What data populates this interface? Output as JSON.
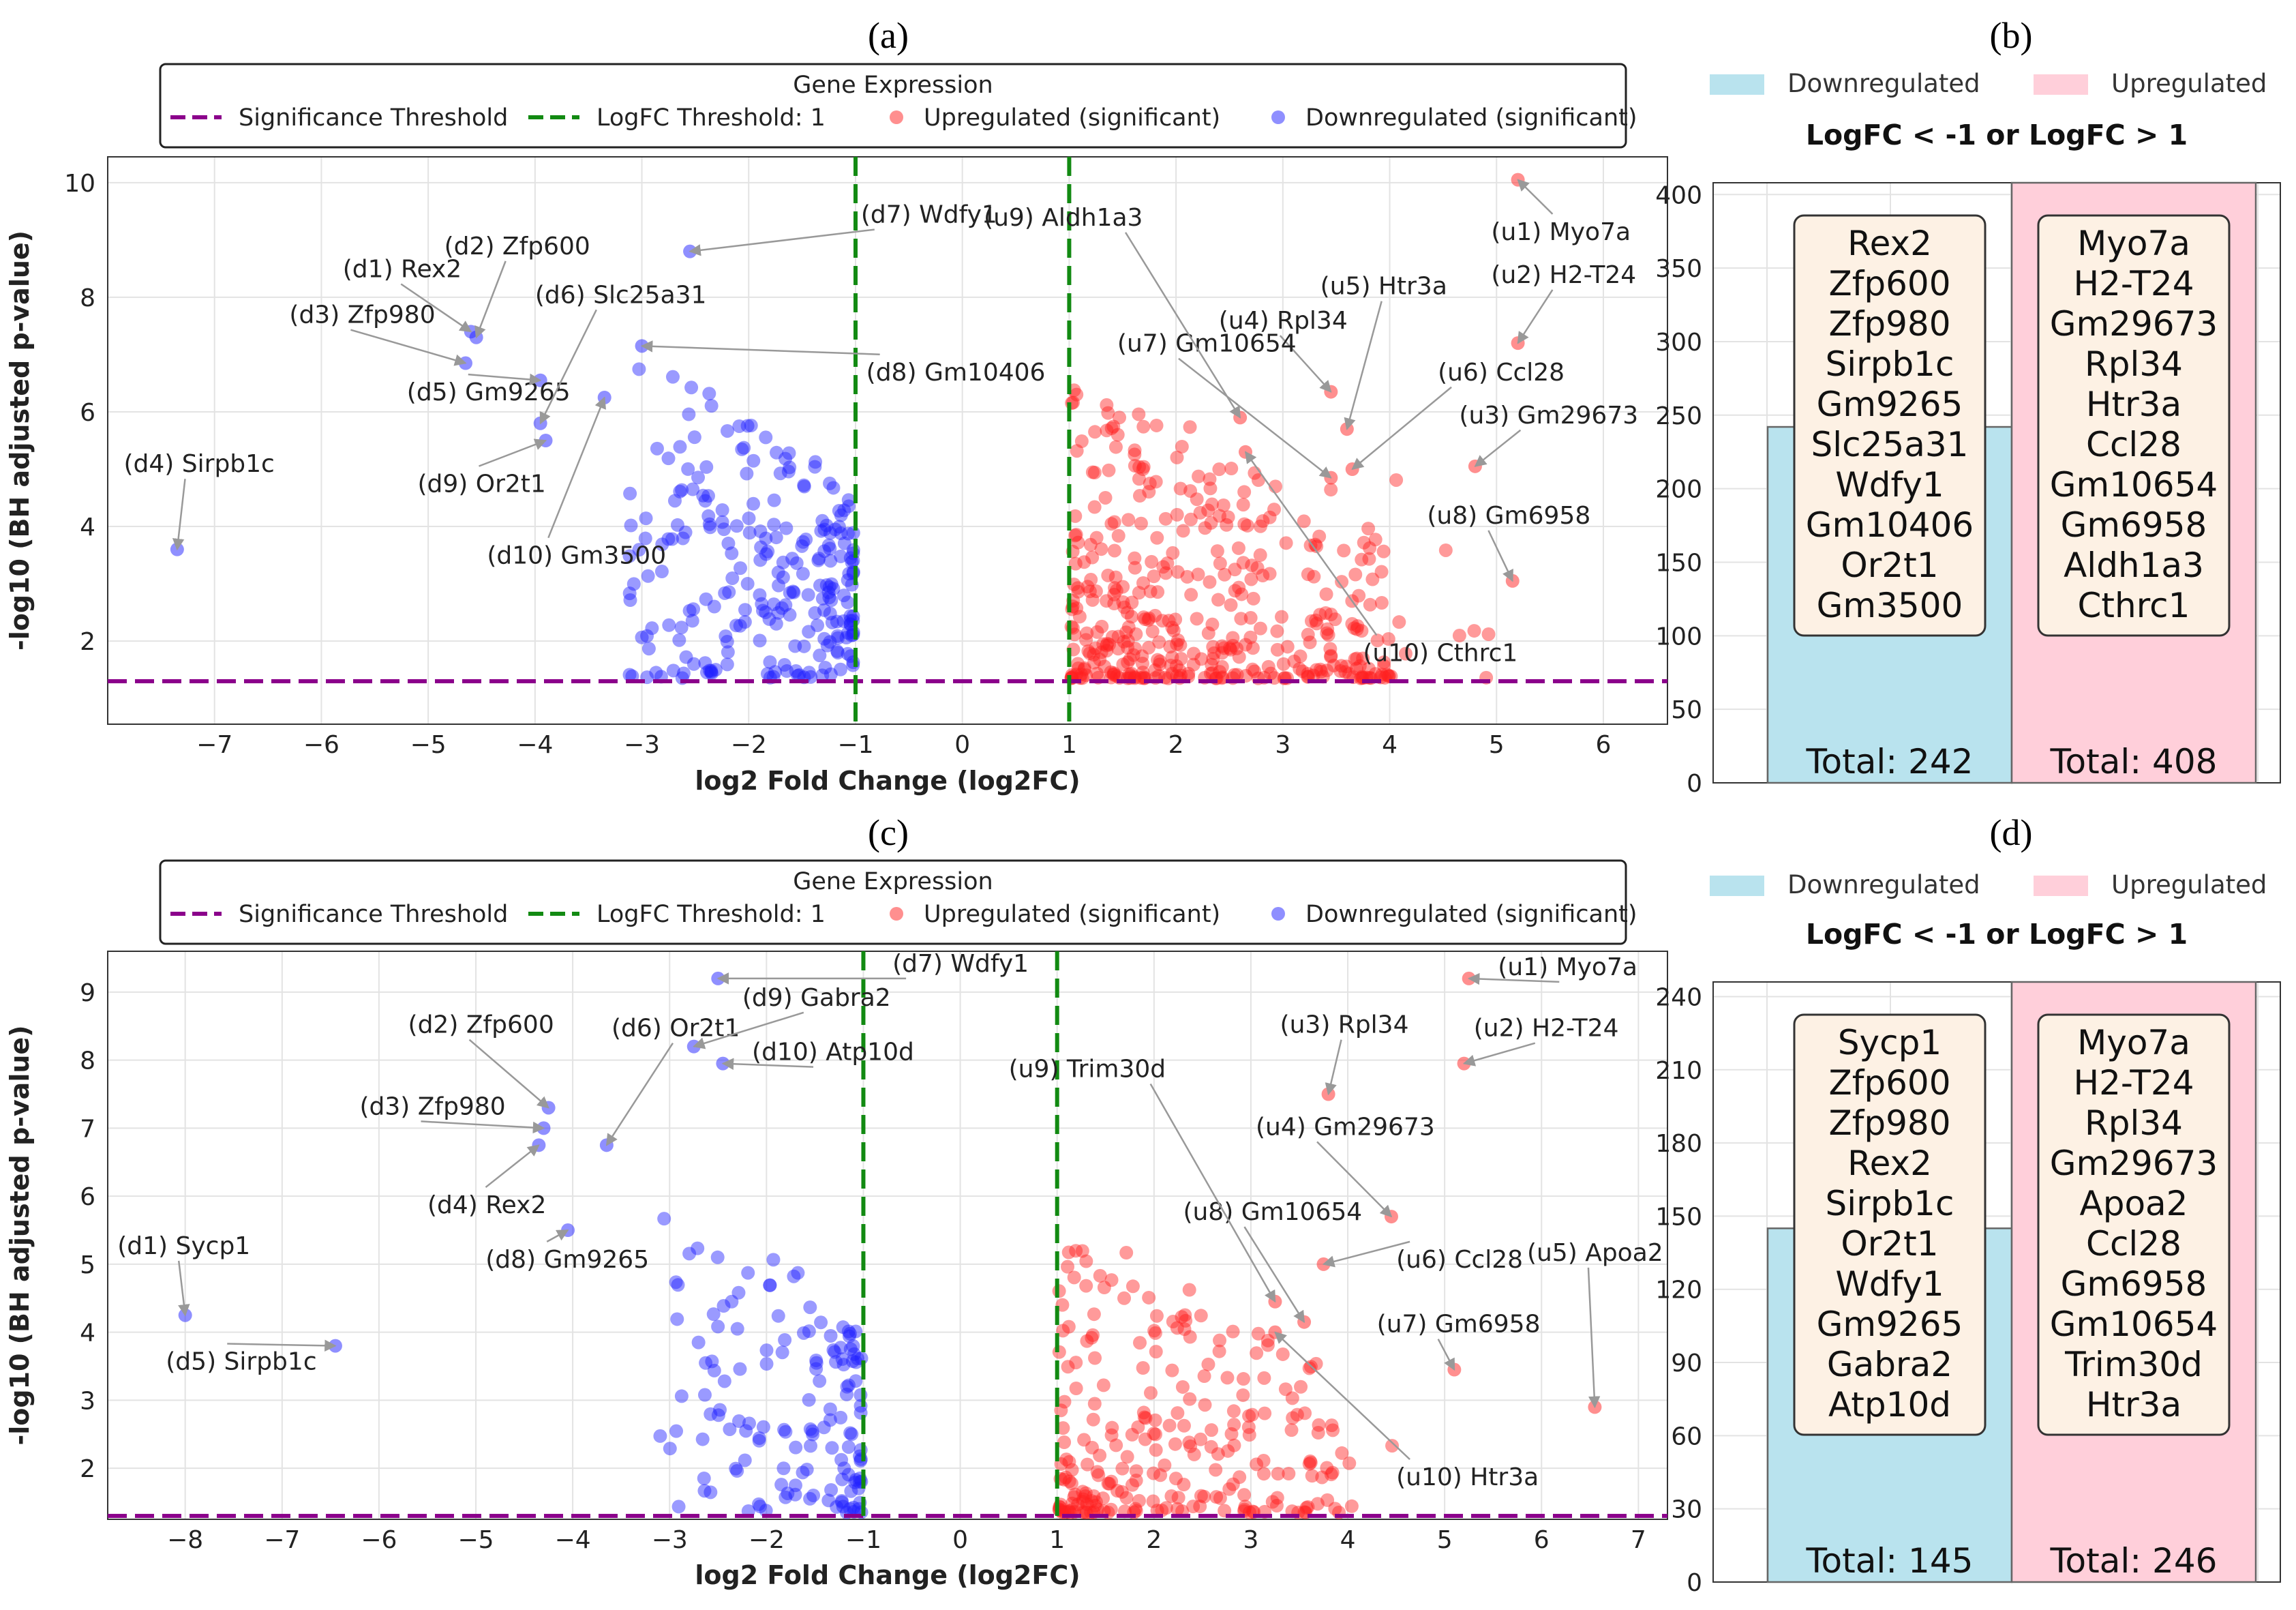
{
  "figure_labels": [
    "(a)",
    "(b)",
    "(c)",
    "(d)"
  ],
  "chart_data": [
    {
      "id": "a",
      "type": "scatter",
      "title": "",
      "xlabel": "log2 Fold Change (log2FC)",
      "ylabel": "-log10 (BH adjusted p-value)",
      "xlim": [
        -8.0,
        6.6
      ],
      "ylim": [
        0.55,
        10.45
      ],
      "xticks": [
        -7,
        -6,
        -5,
        -4,
        -3,
        -2,
        -1,
        0,
        1,
        2,
        3,
        4,
        5,
        6
      ],
      "yticks": [
        2,
        4,
        6,
        8,
        10
      ],
      "grid": true,
      "significance_threshold": 1.3,
      "logfc_threshold": 1,
      "legend": {
        "title": "Gene Expression",
        "placement": "top-center",
        "entries": [
          "Significance Threshold",
          "LogFC Threshold: 1",
          "Upregulated (significant)",
          "Downregulated (significant)"
        ]
      },
      "colors": {
        "up": "#ff2020",
        "down": "#1f1fff",
        "threshold": "#8b008b",
        "logfc": "#128a12"
      },
      "cloud_seed": 11,
      "up_count": 408,
      "down_count": 242,
      "annotations": [
        {
          "label": "(d1) Rex2",
          "x": -4.6,
          "y": 7.4,
          "tx": -5.8,
          "ty": 8.35,
          "tanchor": "start",
          "dir": "down"
        },
        {
          "label": "(d2) Zfp600",
          "x": -4.55,
          "y": 7.3,
          "tx": -4.85,
          "ty": 8.75,
          "tanchor": "start",
          "dir": "down"
        },
        {
          "label": "(d3) Zfp980",
          "x": -4.65,
          "y": 6.85,
          "tx": -6.3,
          "ty": 7.55,
          "tanchor": "start",
          "dir": "down"
        },
        {
          "label": "(d4) Sirpb1c",
          "x": -7.35,
          "y": 3.6,
          "tx": -7.85,
          "ty": 4.95,
          "tanchor": "start",
          "dir": "down"
        },
        {
          "label": "(d5) Gm9265",
          "x": -3.95,
          "y": 6.55,
          "tx": -5.2,
          "ty": 6.2,
          "tanchor": "start",
          "dir": "up"
        },
        {
          "label": "(d6) Slc25a31",
          "x": -3.95,
          "y": 5.8,
          "tx": -4.0,
          "ty": 7.9,
          "tanchor": "start",
          "dir": "down"
        },
        {
          "label": "(d7) Wdfy1",
          "x": -2.55,
          "y": 8.8,
          "tx": -0.95,
          "ty": 9.3,
          "tanchor": "start",
          "dir": "down"
        },
        {
          "label": "(d8) Gm10406",
          "x": -3.0,
          "y": 7.15,
          "tx": -0.9,
          "ty": 6.55,
          "tanchor": "start",
          "dir": "up"
        },
        {
          "label": "(d9) Or2t1",
          "x": -3.9,
          "y": 5.5,
          "tx": -5.1,
          "ty": 4.6,
          "tanchor": "start",
          "dir": "up"
        },
        {
          "label": "(d10) Gm3500",
          "x": -3.35,
          "y": 6.25,
          "tx": -4.45,
          "ty": 3.35,
          "tanchor": "start",
          "dir": "up"
        },
        {
          "label": "(u1) Myo7a",
          "x": 5.2,
          "y": 10.05,
          "tx": 4.95,
          "ty": 9.0,
          "tanchor": "start",
          "dir": "up"
        },
        {
          "label": "(u2) H2-T24",
          "x": 5.2,
          "y": 7.2,
          "tx": 4.95,
          "ty": 8.25,
          "tanchor": "start",
          "dir": "down"
        },
        {
          "label": "(u3) Gm29673",
          "x": 4.8,
          "y": 5.05,
          "tx": 4.65,
          "ty": 5.8,
          "tanchor": "start",
          "dir": "down"
        },
        {
          "label": "(u4) Rpl34",
          "x": 3.45,
          "y": 6.35,
          "tx": 2.4,
          "ty": 7.45,
          "tanchor": "start",
          "dir": "down"
        },
        {
          "label": "(u5) Htr3a",
          "x": 3.6,
          "y": 5.7,
          "tx": 3.35,
          "ty": 8.05,
          "tanchor": "start",
          "dir": "down"
        },
        {
          "label": "(u6) Ccl28",
          "x": 3.65,
          "y": 5.0,
          "tx": 4.45,
          "ty": 6.55,
          "tanchor": "start",
          "dir": "down"
        },
        {
          "label": "(u7) Gm10654",
          "x": 3.45,
          "y": 4.85,
          "tx": 1.45,
          "ty": 7.05,
          "tanchor": "start",
          "dir": "down"
        },
        {
          "label": "(u8) Gm6958",
          "x": 5.15,
          "y": 3.05,
          "tx": 4.35,
          "ty": 4.05,
          "tanchor": "start",
          "dir": "down"
        },
        {
          "label": "(u9) Aldh1a3",
          "x": 2.6,
          "y": 5.9,
          "tx": 0.2,
          "ty": 9.25,
          "tanchor": "start",
          "dir": "down"
        },
        {
          "label": "(u10) Cthrc1",
          "x": 2.65,
          "y": 5.3,
          "tx": 3.75,
          "ty": 1.65,
          "tanchor": "start",
          "dir": "up"
        }
      ]
    },
    {
      "id": "b",
      "type": "bar",
      "title": "LogFC < -1 or LogFC > 1",
      "categories": [
        "Downregulated",
        "Upregulated"
      ],
      "values": [
        242,
        408
      ],
      "ylim": [
        0,
        408
      ],
      "yticks": [
        0,
        50,
        100,
        150,
        200,
        250,
        300,
        350,
        400
      ],
      "grid": true,
      "legend": {
        "placement": "top",
        "entries": [
          "Downregulated",
          "Upregulated"
        ]
      },
      "colors": {
        "down": "#b9e3ee",
        "up": "#ffcfda"
      },
      "totals": [
        "Total: 242",
        "Total: 408"
      ],
      "gene_lists": [
        [
          "Rex2",
          "Zfp600",
          "Zfp980",
          "Sirpb1c",
          "Gm9265",
          "Slc25a31",
          "Wdfy1",
          "Gm10406",
          "Or2t1",
          "Gm3500"
        ],
        [
          "Myo7a",
          "H2-T24",
          "Gm29673",
          "Rpl34",
          "Htr3a",
          "Ccl28",
          "Gm10654",
          "Gm6958",
          "Aldh1a3",
          "Cthrc1"
        ]
      ]
    },
    {
      "id": "c",
      "type": "scatter",
      "title": "",
      "xlabel": "log2 Fold Change (log2FC)",
      "ylabel": "-log10 (BH adjusted p-value)",
      "xlim": [
        -8.8,
        7.3
      ],
      "ylim": [
        1.25,
        9.6
      ],
      "xticks": [
        -8,
        -7,
        -6,
        -5,
        -4,
        -3,
        -2,
        -1,
        0,
        1,
        2,
        3,
        4,
        5,
        6,
        7
      ],
      "yticks": [
        2,
        3,
        4,
        5,
        6,
        7,
        8,
        9
      ],
      "grid": true,
      "significance_threshold": 1.3,
      "logfc_threshold": 1,
      "legend": {
        "title": "Gene Expression",
        "placement": "top-center",
        "entries": [
          "Significance Threshold",
          "LogFC Threshold: 1",
          "Upregulated (significant)",
          "Downregulated (significant)"
        ]
      },
      "colors": {
        "up": "#ff2020",
        "down": "#1f1fff",
        "threshold": "#8b008b",
        "logfc": "#128a12"
      },
      "cloud_seed": 29,
      "up_count": 246,
      "down_count": 145,
      "annotations": [
        {
          "label": "(d1) Sycp1",
          "x": -8.0,
          "y": 4.25,
          "tx": -8.7,
          "ty": 5.15,
          "tanchor": "start",
          "dir": "down"
        },
        {
          "label": "(d2) Zfp600",
          "x": -4.25,
          "y": 7.3,
          "tx": -5.7,
          "ty": 8.4,
          "tanchor": "start",
          "dir": "down"
        },
        {
          "label": "(d3) Zfp980",
          "x": -4.3,
          "y": 7.0,
          "tx": -6.2,
          "ty": 7.2,
          "tanchor": "start",
          "dir": "down"
        },
        {
          "label": "(d4) Rex2",
          "x": -4.35,
          "y": 6.75,
          "tx": -5.5,
          "ty": 5.75,
          "tanchor": "start",
          "dir": "up"
        },
        {
          "label": "(d5) Sirpb1c",
          "x": -6.45,
          "y": 3.8,
          "tx": -8.2,
          "ty": 3.45,
          "tanchor": "start",
          "dir": "up"
        },
        {
          "label": "(d6) Or2t1",
          "x": -3.65,
          "y": 6.75,
          "tx": -3.6,
          "ty": 8.35,
          "tanchor": "start",
          "dir": "down"
        },
        {
          "label": "(d7) Wdfy1",
          "x": -2.5,
          "y": 9.2,
          "tx": -0.7,
          "ty": 9.3,
          "tanchor": "start",
          "dir": "down"
        },
        {
          "label": "(d8) Gm9265",
          "x": -4.05,
          "y": 5.5,
          "tx": -4.9,
          "ty": 4.95,
          "tanchor": "start",
          "dir": "up"
        },
        {
          "label": "(d9) Gabra2",
          "x": -2.75,
          "y": 8.2,
          "tx": -2.25,
          "ty": 8.8,
          "tanchor": "start",
          "dir": "down"
        },
        {
          "label": "(d10) Atp10d",
          "x": -2.45,
          "y": 7.95,
          "tx": -2.15,
          "ty": 8.0,
          "tanchor": "start",
          "dir": "down"
        },
        {
          "label": "(u1) Myo7a",
          "x": 5.25,
          "y": 9.2,
          "tx": 5.55,
          "ty": 9.25,
          "tanchor": "start",
          "dir": "down"
        },
        {
          "label": "(u2) H2-T24",
          "x": 5.2,
          "y": 7.95,
          "tx": 5.3,
          "ty": 8.35,
          "tanchor": "start",
          "dir": "down"
        },
        {
          "label": "(u3) Rpl34",
          "x": 3.8,
          "y": 7.5,
          "tx": 3.3,
          "ty": 8.4,
          "tanchor": "start",
          "dir": "down"
        },
        {
          "label": "(u4) Gm29673",
          "x": 4.45,
          "y": 5.7,
          "tx": 3.05,
          "ty": 6.9,
          "tanchor": "start",
          "dir": "down"
        },
        {
          "label": "(u5) Apoa2",
          "x": 6.55,
          "y": 2.9,
          "tx": 5.85,
          "ty": 5.05,
          "tanchor": "start",
          "dir": "down"
        },
        {
          "label": "(u6) Ccl28",
          "x": 3.75,
          "y": 5.0,
          "tx": 4.5,
          "ty": 4.95,
          "tanchor": "start",
          "dir": "up"
        },
        {
          "label": "(u7) Gm6958",
          "x": 5.1,
          "y": 3.45,
          "tx": 4.3,
          "ty": 4.0,
          "tanchor": "start",
          "dir": "down"
        },
        {
          "label": "(u8) Gm10654",
          "x": 3.55,
          "y": 4.15,
          "tx": 2.3,
          "ty": 5.65,
          "tanchor": "start",
          "dir": "down"
        },
        {
          "label": "(u9) Trim30d",
          "x": 3.25,
          "y": 4.45,
          "tx": 0.5,
          "ty": 7.75,
          "tanchor": "start",
          "dir": "down"
        },
        {
          "label": "(u10) Htr3a",
          "x": 3.25,
          "y": 4.0,
          "tx": 4.5,
          "ty": 1.75,
          "tanchor": "start",
          "dir": "up"
        }
      ]
    },
    {
      "id": "d",
      "type": "bar",
      "title": "LogFC < -1 or LogFC > 1",
      "categories": [
        "Downregulated",
        "Upregulated"
      ],
      "values": [
        145,
        246
      ],
      "ylim": [
        0,
        246
      ],
      "yticks": [
        0,
        30,
        60,
        90,
        120,
        150,
        180,
        210,
        240
      ],
      "grid": true,
      "legend": {
        "placement": "top",
        "entries": [
          "Downregulated",
          "Upregulated"
        ]
      },
      "colors": {
        "down": "#b9e3ee",
        "up": "#ffcfda"
      },
      "totals": [
        "Total: 145",
        "Total: 246"
      ],
      "gene_lists": [
        [
          "Sycp1",
          "Zfp600",
          "Zfp980",
          "Rex2",
          "Sirpb1c",
          "Or2t1",
          "Wdfy1",
          "Gm9265",
          "Gabra2",
          "Atp10d"
        ],
        [
          "Myo7a",
          "H2-T24",
          "Rpl34",
          "Gm29673",
          "Apoa2",
          "Ccl28",
          "Gm6958",
          "Gm10654",
          "Trim30d",
          "Htr3a"
        ]
      ]
    }
  ]
}
